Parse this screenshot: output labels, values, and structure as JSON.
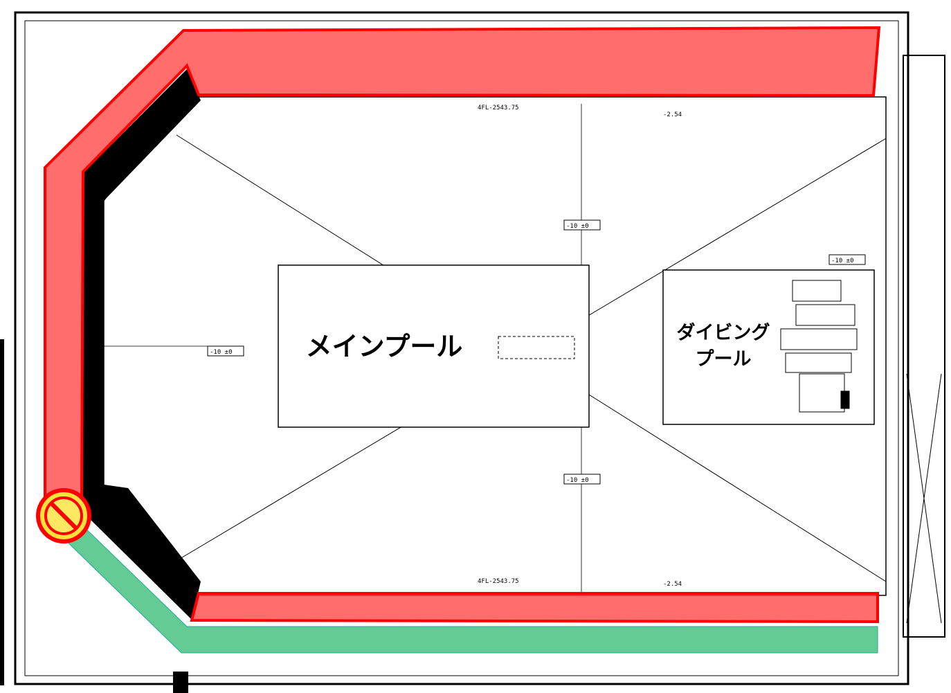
{
  "labels": {
    "main_pool": "メインプール",
    "diving_pool": [
      "ダイビング",
      "プール"
    ]
  },
  "annotations": {
    "level_top": "4FL-2543.75",
    "level_bottom": "4FL-2543.75",
    "mark_top": "-2.54",
    "mark_bottom": "-2.54",
    "box_center_top": "-10 ±0",
    "box_center_bottom": "-10 ±0",
    "box_left": "-10 ±0",
    "box_right": "-10 ±0"
  }
}
